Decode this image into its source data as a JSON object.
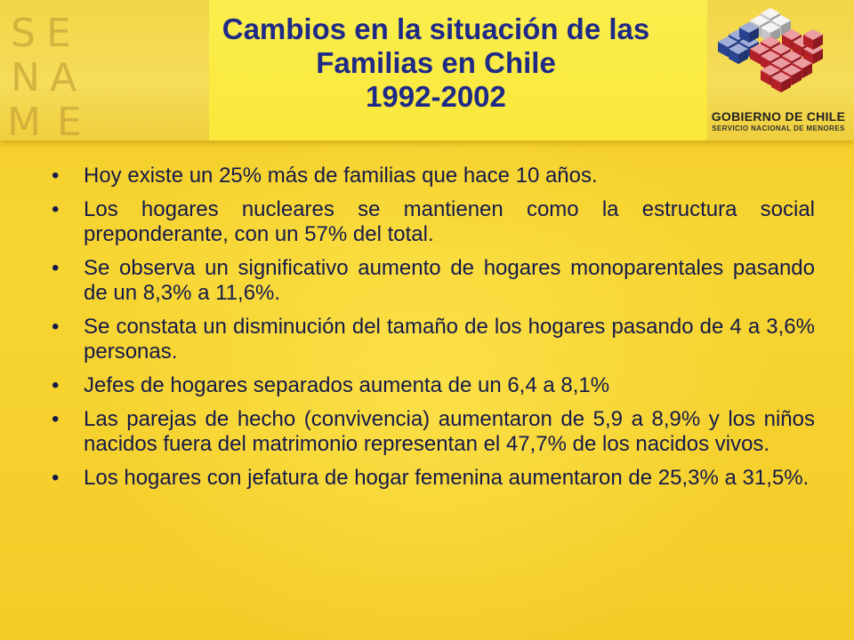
{
  "slide": {
    "title_lines": [
      "Cambios en la situación de las",
      "Familias en Chile",
      "1992-2002"
    ],
    "title_color": "#1f2a87",
    "background_color": "#f6d131",
    "text_color": "#151a4a"
  },
  "logos": {
    "left": {
      "icon": "sename-logo",
      "letters": [
        "S",
        "E",
        "N",
        "A",
        "M",
        "E"
      ]
    },
    "right": {
      "icon": "gobierno-de-chile-cubes-logo",
      "name": "GOBIERNO DE CHILE",
      "subtitle": "SERVICIO NACIONAL DE MENORES"
    }
  },
  "bullet_glyph": "•",
  "bullets": [
    "Hoy existe un 25% más de familias que hace 10 años.",
    "Los hogares nucleares se mantienen como la estructura social preponderante, con un 57% del total.",
    "Se observa un significativo aumento de hogares monoparentales pasando de un 8,3% a 11,6%.",
    "Se constata un disminución del tamaño de los hogares pasando de 4 a 3,6% personas.",
    "Jefes de hogares separados aumenta de un 6,4 a 8,1%",
    "Las parejas de hecho (convivencia) aumentaron de 5,9 a 8,9% y los niños nacidos fuera del matrimonio representan el 47,7% de los nacidos vivos.",
    "Los hogares con jefatura de hogar femenina aumentaron de 25,3% a 31,5%."
  ]
}
